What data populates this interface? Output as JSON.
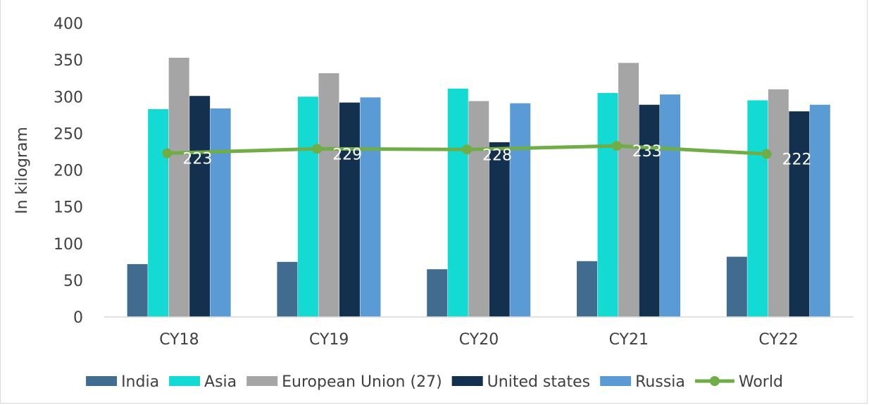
{
  "chart_data": {
    "type": "bar",
    "title": "",
    "ylabel": "In kilogram",
    "xlabel": "",
    "ylim": [
      0,
      400
    ],
    "yticks": [
      0,
      50,
      100,
      150,
      200,
      250,
      300,
      350,
      400
    ],
    "categories": [
      "CY18",
      "CY19",
      "CY20",
      "CY21",
      "CY22"
    ],
    "series": [
      {
        "name": "India",
        "type": "bar",
        "color": "#416b8f",
        "values": [
          72,
          75,
          65,
          76,
          82
        ]
      },
      {
        "name": "Asia",
        "type": "bar",
        "color": "#13dbd4",
        "values": [
          283,
          300,
          311,
          305,
          295
        ]
      },
      {
        "name": "European Union (27)",
        "type": "bar",
        "color": "#a5a5a5",
        "values": [
          353,
          332,
          294,
          346,
          310
        ]
      },
      {
        "name": "United states",
        "type": "bar",
        "color": "#13304f",
        "values": [
          301,
          292,
          238,
          289,
          280
        ]
      },
      {
        "name": "Russia",
        "type": "bar",
        "color": "#5b9bd5",
        "values": [
          284,
          299,
          291,
          303,
          289
        ]
      },
      {
        "name": "World",
        "type": "line",
        "color": "#70ad47",
        "values": [
          223,
          229,
          228,
          233,
          222
        ],
        "data_labels": [
          "223",
          "229",
          "228",
          "233",
          "222"
        ]
      }
    ],
    "grid": false,
    "legend_position": "bottom"
  }
}
